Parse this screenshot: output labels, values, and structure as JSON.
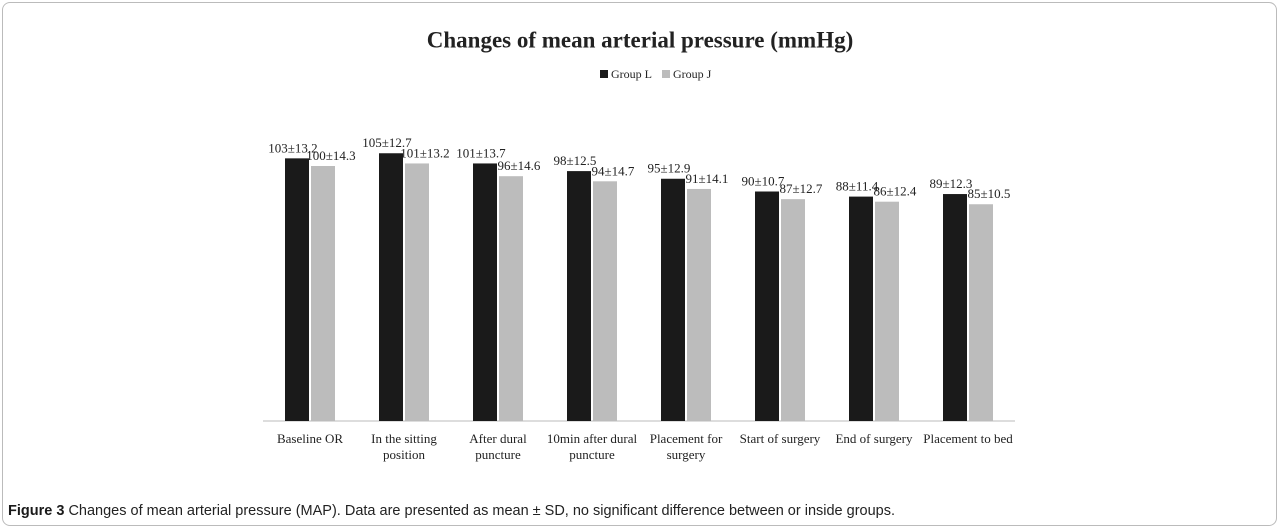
{
  "chart_data": {
    "type": "bar",
    "title": "Changes of mean arterial  pressure (mmHg)",
    "categories": [
      "Baseline OR",
      "In the sitting position",
      "After dural puncture",
      "10min after dural puncture",
      "Placement for surgery",
      "Start of surgery",
      "End of surgery",
      "Placement to bed"
    ],
    "series": [
      {
        "name": "Group L",
        "color": "#1a1a1a",
        "values": [
          103,
          105,
          101,
          98,
          95,
          90,
          88,
          89
        ],
        "value_labels": [
          "103±13.2",
          "105±12.7",
          "101±13.7",
          "98±12.5",
          "95±12.9",
          "90±10.7",
          "88±11.4",
          "89±12.3"
        ]
      },
      {
        "name": "Group J",
        "color": "#bcbcbc",
        "values": [
          100,
          101,
          96,
          94,
          91,
          87,
          86,
          85
        ],
        "value_labels": [
          "100±14.3",
          "101±13.2",
          "96±14.6",
          "94±14.7",
          "91±14.1",
          "87±12.7",
          "86±12.4",
          "85±10.5"
        ]
      }
    ],
    "legend": "top"
  },
  "caption": {
    "label": "Figure 3",
    "text": "Changes of mean arterial pressure (MAP). Data are presented as mean ± SD, no significant difference between or inside groups."
  }
}
